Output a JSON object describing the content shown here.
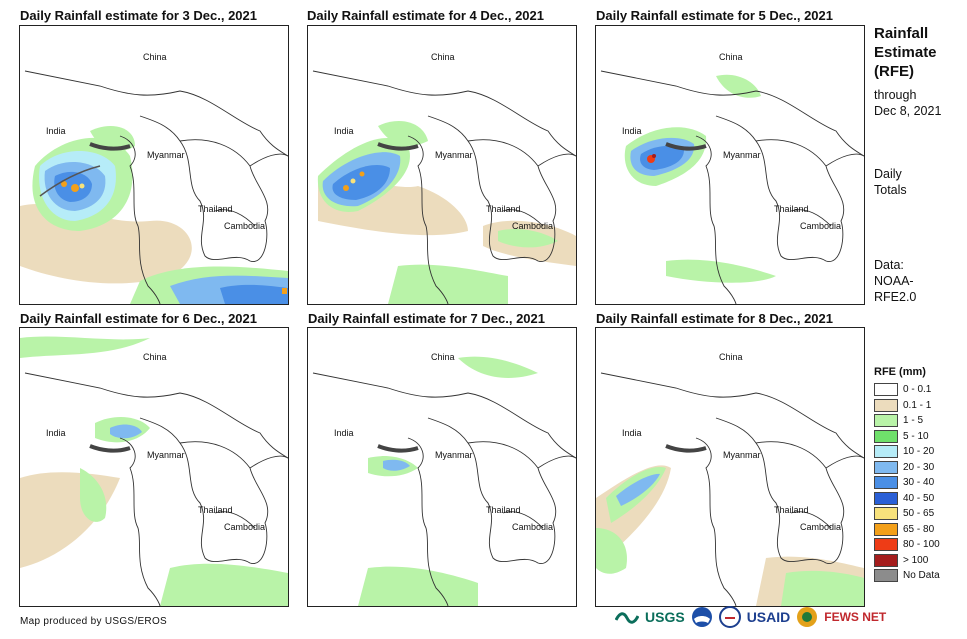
{
  "panels": [
    {
      "title": "Daily Rainfall estimate for 3 Dec., 2021"
    },
    {
      "title": "Daily Rainfall estimate for 4 Dec., 2021"
    },
    {
      "title": "Daily Rainfall estimate for 5 Dec., 2021"
    },
    {
      "title": "Daily Rainfall estimate for 6 Dec., 2021"
    },
    {
      "title": "Daily Rainfall estimate for 7 Dec., 2021"
    },
    {
      "title": "Daily Rainfall estimate for 8 Dec., 2021"
    }
  ],
  "countries": {
    "china": "China",
    "india": "India",
    "myanmar": "Myanmar",
    "thailand": "Thailand",
    "cambodia": "Cambodia"
  },
  "side": {
    "title_lines": [
      "Rainfall",
      "Estimate",
      "(RFE)"
    ],
    "through": "through",
    "date": "Dec 8, 2021",
    "daily": "Daily",
    "totals": "Totals",
    "data_label": "Data:",
    "data_src1": "NOAA-",
    "data_src2": "RFE2.0"
  },
  "legend": {
    "title": "RFE (mm)",
    "items": [
      {
        "label": "0 - 0.1",
        "color": "#ffffff"
      },
      {
        "label": "0.1 - 1",
        "color": "#ecdcbd"
      },
      {
        "label": "1 - 5",
        "color": "#b9f3a8"
      },
      {
        "label": "5 - 10",
        "color": "#6fe06b"
      },
      {
        "label": "10 - 20",
        "color": "#b6ecf8"
      },
      {
        "label": "20 - 30",
        "color": "#7fb9f0"
      },
      {
        "label": "30 - 40",
        "color": "#4a8fe6"
      },
      {
        "label": "40 - 50",
        "color": "#2a5fd6"
      },
      {
        "label": "50 - 65",
        "color": "#f8e27c"
      },
      {
        "label": "65 - 80",
        "color": "#f3a01a"
      },
      {
        "label": "80 - 100",
        "color": "#ee3c16"
      },
      {
        "label": "> 100",
        "color": "#a51d1d"
      },
      {
        "label": "No Data",
        "color": "#8c8c8c"
      }
    ]
  },
  "credit": "Map produced by USGS/EROS",
  "logos": {
    "usgs": "USGS",
    "usaid": "USAID",
    "fewsnet": "FEWS NET"
  }
}
